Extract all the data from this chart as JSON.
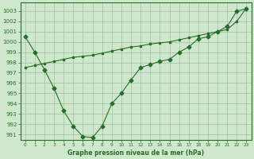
{
  "line1_x": [
    0,
    1,
    2,
    3,
    4,
    5,
    6,
    7,
    8,
    9,
    10,
    11,
    12,
    13,
    14,
    15,
    16,
    17,
    18,
    19,
    20,
    21,
    22,
    23
  ],
  "line1_y": [
    1000.5,
    999.0,
    997.3,
    995.5,
    993.3,
    991.8,
    990.8,
    990.7,
    991.8,
    994.0,
    995.0,
    996.3,
    997.5,
    997.8,
    998.1,
    998.3,
    999.0,
    999.5,
    1000.3,
    1000.5,
    1001.0,
    1001.5,
    1003.0,
    1003.2
  ],
  "line2_x": [
    0,
    1,
    2,
    3,
    4,
    5,
    6,
    7,
    8,
    9,
    10,
    11,
    12,
    13,
    14,
    15,
    16,
    17,
    18,
    19,
    20,
    21,
    22,
    23
  ],
  "line2_y": [
    997.5,
    997.7,
    997.9,
    998.1,
    998.3,
    998.5,
    998.6,
    998.7,
    998.9,
    999.1,
    999.3,
    999.5,
    999.6,
    999.8,
    999.9,
    1000.0,
    1000.2,
    1000.4,
    1000.6,
    1000.8,
    1001.0,
    1001.2,
    1002.0,
    1003.3
  ],
  "color": "#2d6a2d",
  "bg_color": "#cde8cd",
  "grid_color": "#a0bfa0",
  "title": "Graphe pression niveau de la mer (hPa)",
  "xlabel_ticks": [
    0,
    1,
    2,
    3,
    4,
    5,
    6,
    7,
    8,
    9,
    10,
    11,
    12,
    13,
    14,
    15,
    16,
    17,
    18,
    19,
    20,
    21,
    22,
    23
  ],
  "yticks": [
    991,
    992,
    993,
    994,
    995,
    996,
    997,
    998,
    999,
    1000,
    1001,
    1002,
    1003
  ],
  "ylim": [
    990.5,
    1003.8
  ],
  "xlim": [
    -0.5,
    23.5
  ],
  "figw": 3.2,
  "figh": 2.0,
  "dpi": 100
}
